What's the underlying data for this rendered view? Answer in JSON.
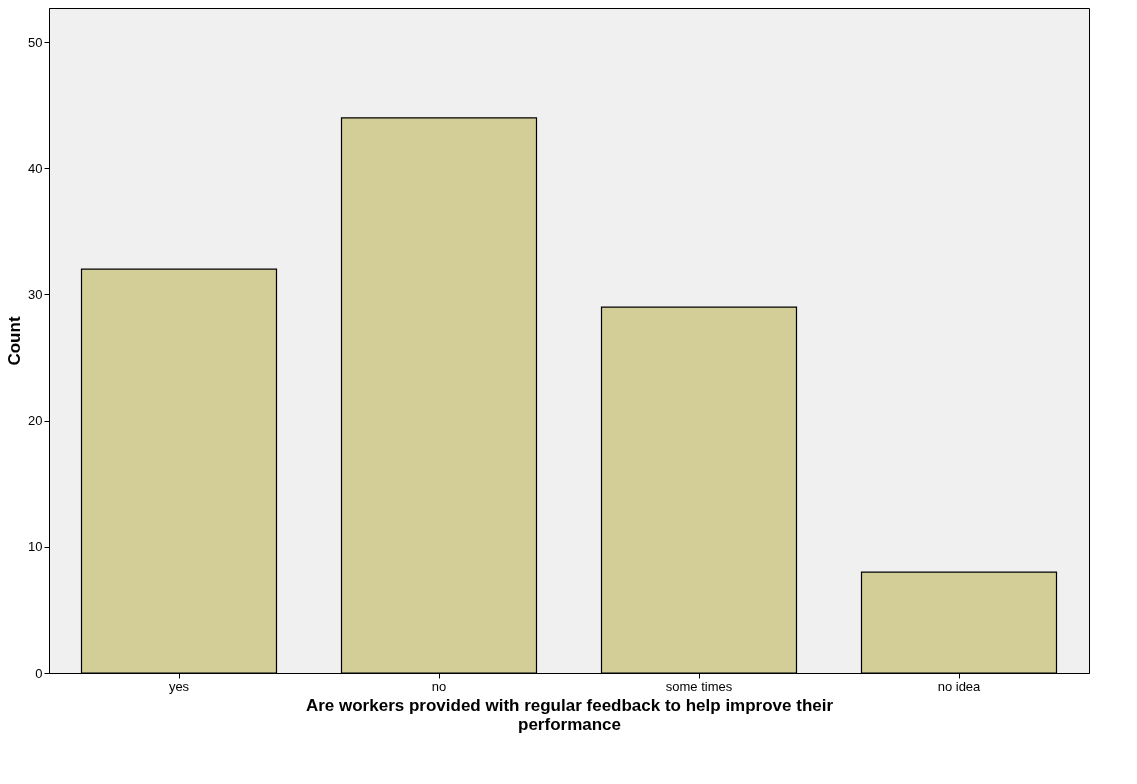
{
  "chart_data": {
    "type": "bar",
    "xlabel": "Are workers provided with regular feedback to help improve their performance",
    "ylabel": "Count",
    "categories": [
      "yes",
      "no",
      "some times",
      "no idea"
    ],
    "values": [
      32,
      44,
      29,
      8
    ],
    "color": "#d3ce97",
    "ylim": [
      0,
      52.7
    ],
    "yticks": [
      0,
      10,
      20,
      30,
      40,
      50
    ],
    "grid": false
  }
}
